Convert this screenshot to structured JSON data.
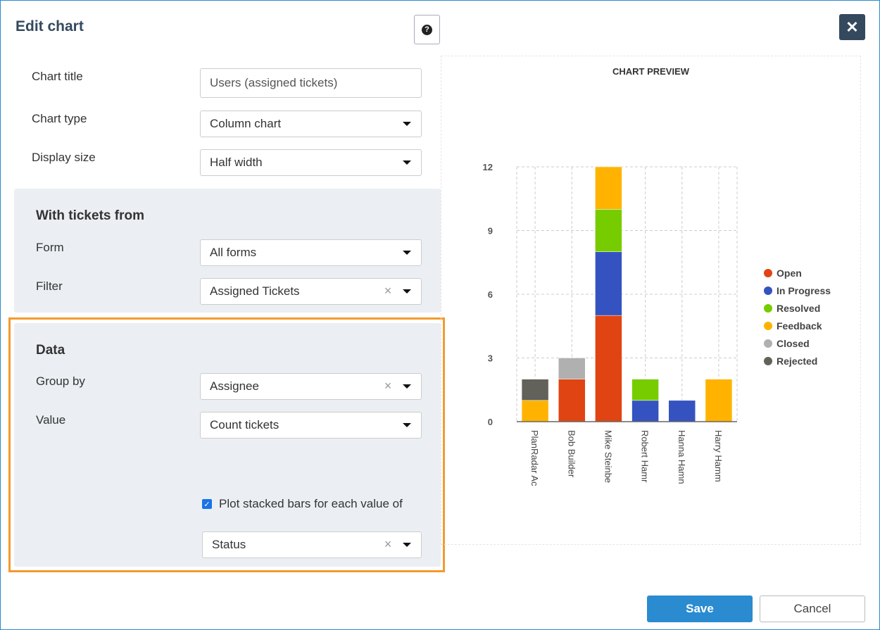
{
  "dialog": {
    "title": "Edit chart",
    "help_icon": "question-circle-icon",
    "close_icon": "close-x-icon"
  },
  "form": {
    "chart_title": {
      "label": "Chart title",
      "value": "Users (assigned tickets)"
    },
    "chart_type": {
      "label": "Chart type",
      "value": "Column chart"
    },
    "display_size": {
      "label": "Display size",
      "value": "Half width"
    }
  },
  "tickets_from": {
    "heading": "With tickets from",
    "form": {
      "label": "Form",
      "value": "All forms"
    },
    "filter": {
      "label": "Filter",
      "value": "Assigned Tickets"
    }
  },
  "data_section": {
    "heading": "Data",
    "group_by": {
      "label": "Group by",
      "value": "Assignee"
    },
    "value": {
      "label": "Value",
      "value": "Count tickets"
    },
    "stacked": {
      "label": "Plot stacked bars for each value of",
      "checked": true
    },
    "stack_field": {
      "value": "Status"
    }
  },
  "preview": {
    "title": "CHART PREVIEW"
  },
  "chart_data": {
    "type": "bar",
    "stacked": true,
    "categories": [
      "PlanRadar Ac",
      "Bob Builder",
      "Mike Steinbe",
      "Robert Hamr",
      "Hanna Hamn",
      "Harry Hamm"
    ],
    "yticks": [
      "0",
      "3",
      "6",
      "9",
      "12"
    ],
    "ylim": [
      0,
      12
    ],
    "grid": true,
    "legend": "right",
    "series": [
      {
        "name": "Open",
        "color": "#e04412",
        "values": [
          0,
          2,
          5,
          0,
          0,
          0
        ]
      },
      {
        "name": "In Progress",
        "color": "#3553c0",
        "values": [
          0,
          0,
          3,
          1,
          1,
          0
        ]
      },
      {
        "name": "Resolved",
        "color": "#77cc00",
        "values": [
          0,
          0,
          2,
          1,
          0,
          0
        ]
      },
      {
        "name": "Feedback",
        "color": "#ffb300",
        "values": [
          1,
          0,
          2,
          0,
          0,
          2
        ]
      },
      {
        "name": "Closed",
        "color": "#b0b0b0",
        "values": [
          0,
          1,
          0,
          0,
          0,
          0
        ]
      },
      {
        "name": "Rejected",
        "color": "#62625a",
        "values": [
          1,
          0,
          0,
          0,
          0,
          0
        ]
      }
    ]
  },
  "footer": {
    "save": "Save",
    "cancel": "Cancel"
  }
}
